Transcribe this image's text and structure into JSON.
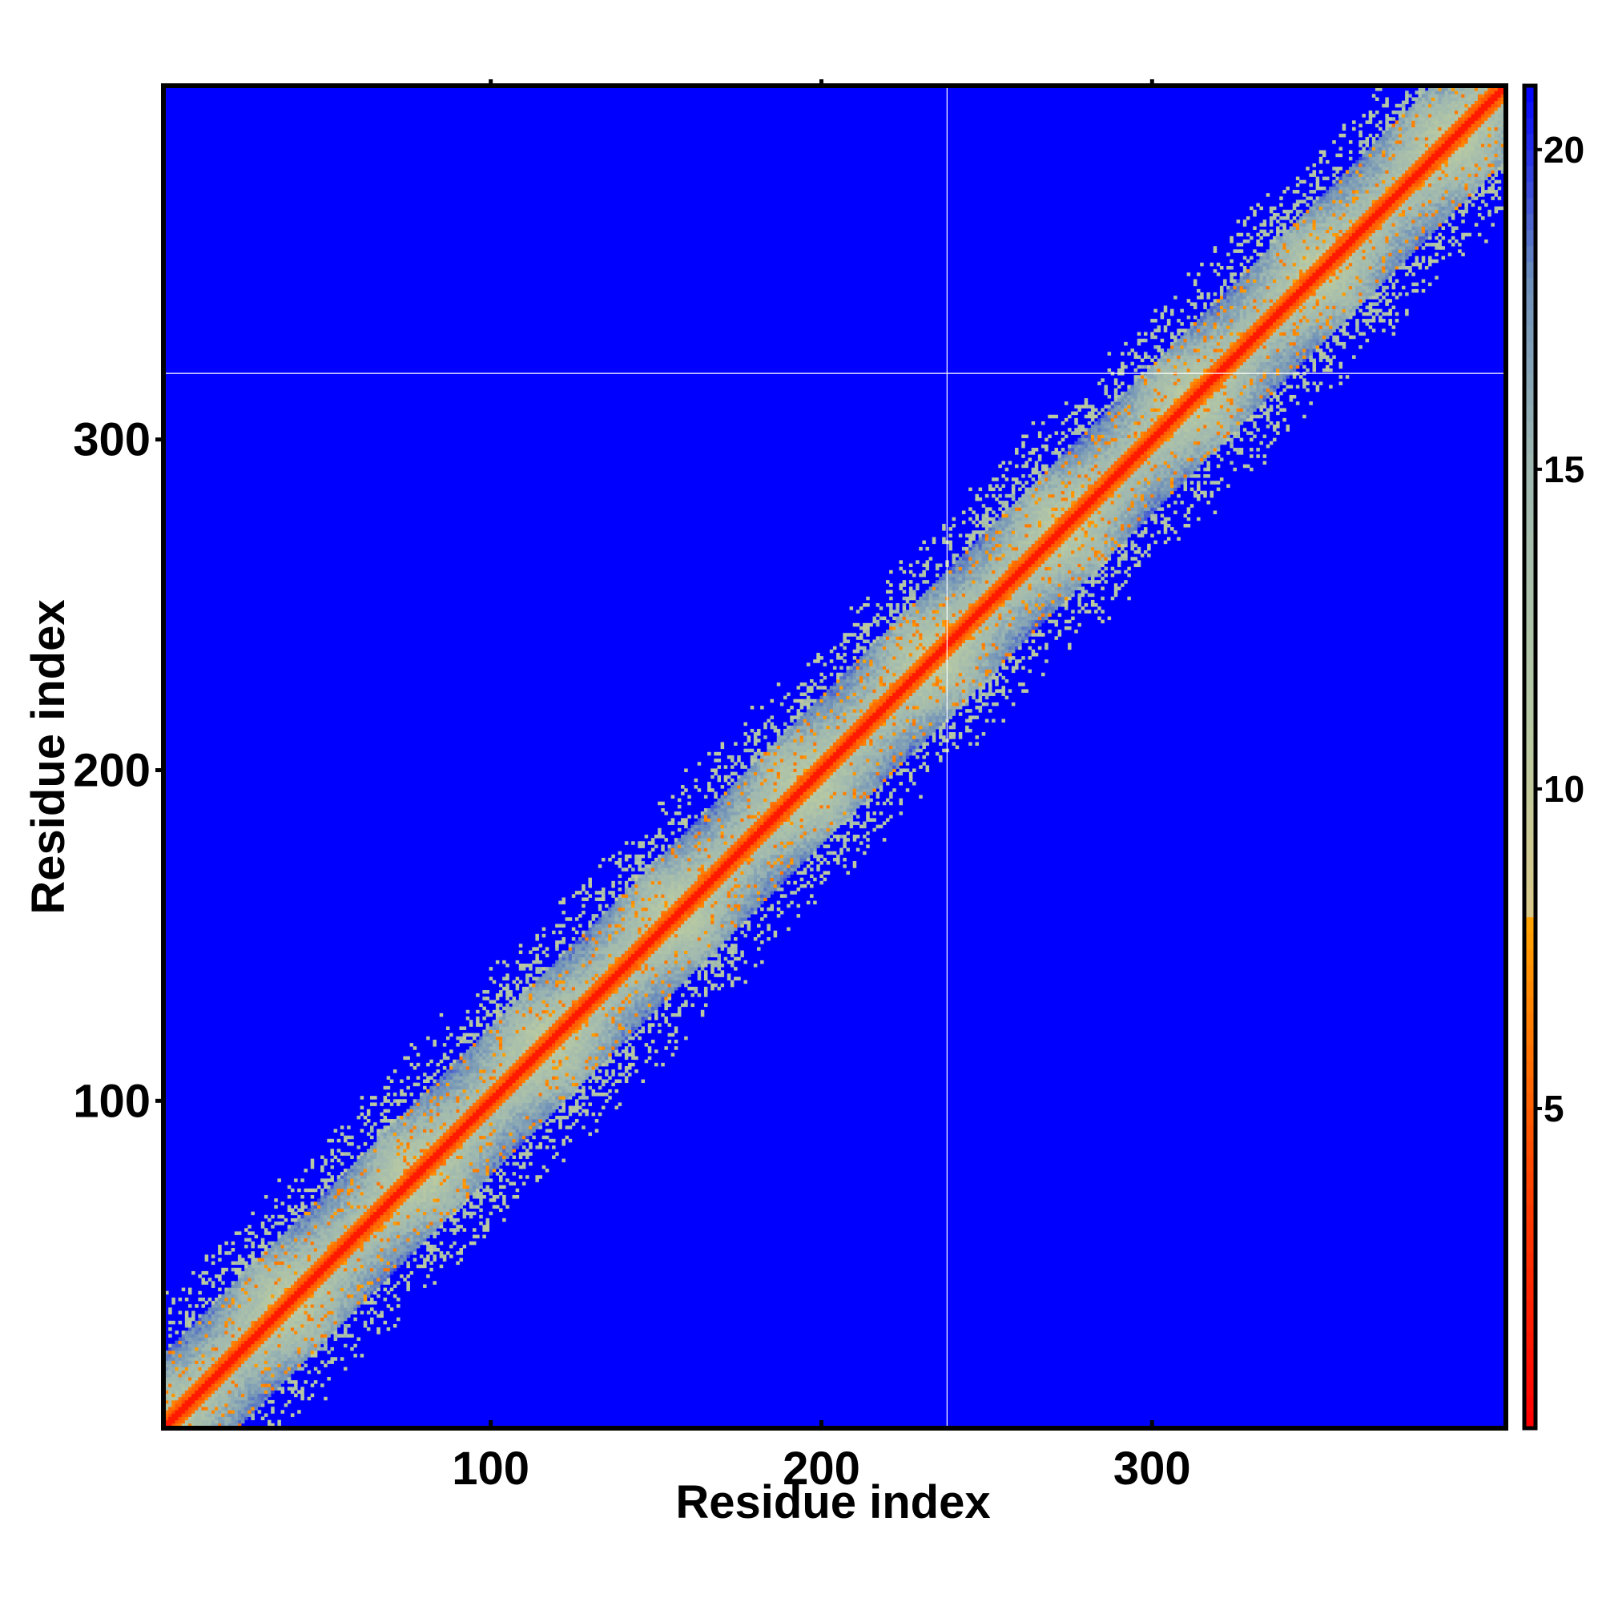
{
  "chart_data": {
    "type": "heatmap",
    "title": "",
    "xlabel": "Residue index",
    "ylabel": "Residue index",
    "xlim": [
      1,
      407
    ],
    "ylim": [
      1,
      407
    ],
    "x_ticks": [
      100,
      200,
      300
    ],
    "y_ticks": [
      100,
      200,
      300
    ],
    "n_residues": 407,
    "colorbar": {
      "range": [
        0,
        21
      ],
      "ticks": [
        5,
        10,
        15,
        20
      ],
      "stops": [
        {
          "value": 0,
          "color": "#ff0000"
        },
        {
          "value": 4,
          "color": "#ff4500"
        },
        {
          "value": 8,
          "color": "#ffa500"
        },
        {
          "value": 8.01,
          "color": "#d9c98a"
        },
        {
          "value": 11,
          "color": "#b7c9a3"
        },
        {
          "value": 15,
          "color": "#9fb8b0"
        },
        {
          "value": 18,
          "color": "#6d8fb9"
        },
        {
          "value": 21,
          "color": "#0000ff"
        }
      ]
    },
    "background_value": 21,
    "description_of_values": "symmetric residue-residue distance map; 0-4 on diagonal rising to >20 away from diagonal",
    "structure": {
      "diagonal_band_halfwidth": 4,
      "near_band_halfwidth": 22,
      "repeat_period": 39,
      "off_diagonal_contacts_extent": 42
    },
    "crosshair": {
      "x": 238,
      "y": 320
    },
    "colors": {
      "background": "#0000ff",
      "diagonal": "#ff0000",
      "crosshair": "#ffffff"
    }
  }
}
